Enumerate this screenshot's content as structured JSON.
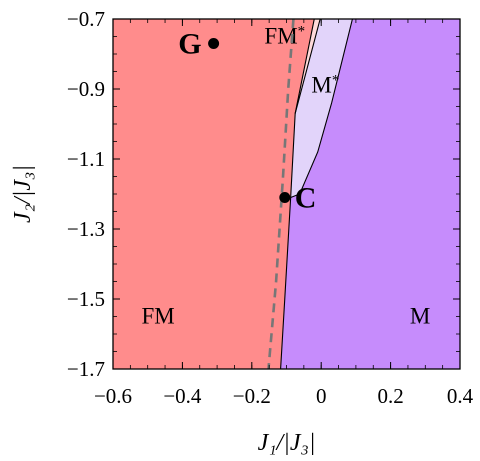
{
  "chart_data": {
    "type": "phase-diagram",
    "xlabel": "J₁/|J₃|",
    "ylabel": "J₂/|J₃|",
    "xlim": [
      -0.6,
      0.4
    ],
    "ylim": [
      -1.7,
      -0.7
    ],
    "y_inverted": true,
    "x_ticks": [
      -0.6,
      -0.4,
      -0.2,
      0,
      0.2,
      0.4
    ],
    "x_tick_labels": [
      "−0.6",
      "−0.4",
      "−0.2",
      "0",
      "0.2",
      "0.4"
    ],
    "y_ticks": [
      -0.7,
      -0.9,
      -1.1,
      -1.3,
      -1.5,
      -1.7
    ],
    "y_tick_labels": [
      "−0.7",
      "−0.9",
      "−1.1",
      "−1.3",
      "−1.5",
      "−1.7"
    ],
    "grid": false,
    "regions": [
      {
        "label": "FM",
        "color": "#ff8c8c",
        "label_at": [
          -0.47,
          -1.57
        ],
        "polygon": [
          [
            -0.6,
            -0.7
          ],
          [
            -0.02,
            -0.7
          ],
          [
            -0.075,
            -0.97
          ],
          [
            -0.088,
            -1.21
          ],
          [
            -0.105,
            -1.5
          ],
          [
            -0.117,
            -1.7
          ],
          [
            -0.6,
            -1.7
          ]
        ]
      },
      {
        "label": "FM*",
        "color": "#ffdada",
        "label_at": [
          -0.105,
          -0.77
        ],
        "polygon": [
          [
            -0.02,
            -0.7
          ],
          [
            -0.003,
            -0.7
          ],
          [
            -0.075,
            -0.97
          ]
        ]
      },
      {
        "label": "M*",
        "color": "#e2d4fa",
        "label_at": [
          0.012,
          -0.91
        ],
        "polygon": [
          [
            -0.003,
            -0.7
          ],
          [
            0.09,
            -0.7
          ],
          [
            0.03,
            -0.94
          ],
          [
            -0.01,
            -1.08
          ],
          [
            -0.062,
            -1.2
          ],
          [
            -0.088,
            -1.21
          ],
          [
            -0.075,
            -0.97
          ]
        ]
      },
      {
        "label": "M",
        "color": "#c68cfc",
        "label_at": [
          0.285,
          -1.57
        ],
        "polygon": [
          [
            0.09,
            -0.7
          ],
          [
            0.4,
            -0.7
          ],
          [
            0.4,
            -1.7
          ],
          [
            -0.117,
            -1.7
          ],
          [
            -0.105,
            -1.5
          ],
          [
            -0.088,
            -1.21
          ],
          [
            -0.062,
            -1.2
          ],
          [
            -0.01,
            -1.08
          ],
          [
            0.03,
            -0.94
          ]
        ]
      }
    ],
    "boundaries": [
      {
        "style": "solid",
        "points": [
          [
            -0.02,
            -0.7
          ],
          [
            -0.075,
            -0.97
          ],
          [
            -0.088,
            -1.21
          ],
          [
            -0.105,
            -1.5
          ],
          [
            -0.117,
            -1.7
          ]
        ]
      },
      {
        "style": "solid",
        "points": [
          [
            -0.003,
            -0.7
          ],
          [
            -0.075,
            -0.97
          ]
        ]
      },
      {
        "style": "solid",
        "points": [
          [
            0.09,
            -0.7
          ],
          [
            0.03,
            -0.94
          ],
          [
            -0.01,
            -1.08
          ],
          [
            -0.062,
            -1.2
          ],
          [
            -0.088,
            -1.21
          ]
        ]
      },
      {
        "style": "dashed",
        "color": "#777777",
        "points": [
          [
            -0.08,
            -0.7
          ],
          [
            -0.095,
            -0.9
          ],
          [
            -0.11,
            -1.15
          ],
          [
            -0.13,
            -1.45
          ],
          [
            -0.152,
            -1.7
          ]
        ]
      }
    ],
    "points": [
      {
        "label": "G",
        "x": -0.31,
        "y": -0.77,
        "label_side": "left"
      },
      {
        "label": "C",
        "x": -0.105,
        "y": -1.21,
        "label_side": "right"
      }
    ]
  }
}
